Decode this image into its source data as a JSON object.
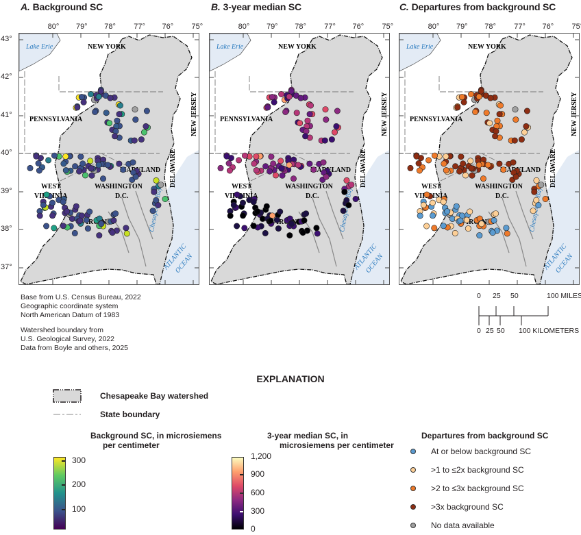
{
  "panels": [
    {
      "letter": "A.",
      "title": "Background SC"
    },
    {
      "letter": "B.",
      "title": "3-year median SC"
    },
    {
      "letter": "C.",
      "title": "Departures from background SC"
    }
  ],
  "axes": {
    "longitude_ticks": [
      "80°",
      "79°",
      "78°",
      "77°",
      "76°",
      "75°"
    ],
    "latitude_ticks": [
      "43°",
      "42°",
      "41°",
      "40°",
      "39°",
      "38°",
      "37°"
    ]
  },
  "map_labels": {
    "lake": "Lake Erie",
    "new_york": "NEW YORK",
    "pennsylvania": "PENNSYLVANIA",
    "new_jersey": "NEW JERSEY",
    "maryland": "MARYLAND",
    "delaware": "DELAWARE",
    "west_virginia_1": "WEST",
    "west_virginia_2": "VIRGINIA",
    "washington_1": "WASHINGTON",
    "washington_2": "D.C.",
    "virginia": "VIRGINIA",
    "bay": "Chesapeake Bay",
    "ocean_1": "ATLANTIC",
    "ocean_2": "OCEAN"
  },
  "credits": {
    "line1": "Base from U.S. Census Bureau, 2022",
    "line2": "Geographic coordinate system",
    "line3": "North American Datum of 1983",
    "line4": "Watershed boundary from",
    "line5": "U.S. Geological Survey, 2022",
    "line6": "Data from Boyle and others, 2025"
  },
  "scale_bar": {
    "miles_ticks": [
      "0",
      "25",
      "50",
      "100 MILES"
    ],
    "km_ticks": [
      "0",
      "25",
      "50",
      "100 KILOMETERS"
    ]
  },
  "legend": {
    "title": "EXPLANATION",
    "watershed": "Chesapeake Bay watershed",
    "state_boundary": "State boundary",
    "background_sc": {
      "title_line1": "Background SC, in microsiemens",
      "title_line2": "per centimeter",
      "ticks": [
        "300",
        "200",
        "100"
      ]
    },
    "median_sc": {
      "title_line1": "3-year median SC, in",
      "title_line2": "microsiemens per centimeter",
      "ticks": [
        "1,200",
        "900",
        "600",
        "300",
        "0"
      ]
    },
    "departures": {
      "title": "Departures from background SC",
      "items": [
        {
          "label": "At or below background SC",
          "color": "#5b9bd0"
        },
        {
          "label": ">1 to ≤2x background SC",
          "color": "#fdcf96"
        },
        {
          "label": ">2 to ≤3x background SC",
          "color": "#ef7a2a"
        },
        {
          "label": ">3x background SC",
          "color": "#8e2d12"
        },
        {
          "label": "No data available",
          "color": "#a0a0a0"
        }
      ]
    }
  },
  "colors": {
    "watershed_fill": "#d9d9d9",
    "water_fill": "#e3ebf5",
    "water_label": "#2b7bbf",
    "viridis_low": "#3b2a6e",
    "viridis_high": "#f2e61f",
    "magma_low": "#000000",
    "magma_high": "#fdf5bd"
  }
}
